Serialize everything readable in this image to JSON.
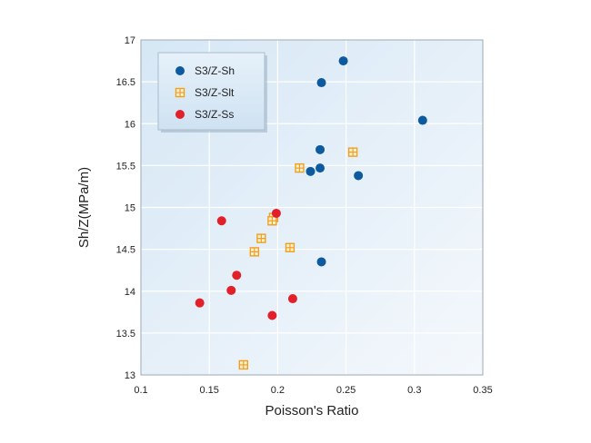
{
  "chart_data": {
    "type": "scatter",
    "xlabel": "Poisson's Ratio",
    "ylabel": "Sh/Z(MPa/m)",
    "xlim": [
      0.1,
      0.35
    ],
    "ylim": [
      13,
      17
    ],
    "xticks": [
      "0.1",
      "0.15",
      "0.2",
      "0.25",
      "0.3",
      "0.35"
    ],
    "yticks": [
      "13",
      "13.5",
      "14",
      "14.5",
      "15",
      "15.5",
      "16",
      "16.5",
      "17"
    ],
    "grid": true,
    "legend_position": "top-left",
    "series": [
      {
        "name": "S3/Z-Sh",
        "marker": "filled-circle",
        "color": "#0d5a9e",
        "points": [
          [
            0.248,
            16.75
          ],
          [
            0.232,
            16.49
          ],
          [
            0.306,
            16.04
          ],
          [
            0.231,
            15.69
          ],
          [
            0.231,
            15.47
          ],
          [
            0.224,
            15.43
          ],
          [
            0.259,
            15.38
          ],
          [
            0.232,
            14.35
          ]
        ]
      },
      {
        "name": "S3/Z-Slt",
        "marker": "boxed-plus",
        "color": "#f0a020",
        "points": [
          [
            0.255,
            15.66
          ],
          [
            0.216,
            15.47
          ],
          [
            0.197,
            14.88
          ],
          [
            0.196,
            14.84
          ],
          [
            0.188,
            14.63
          ],
          [
            0.209,
            14.52
          ],
          [
            0.183,
            14.47
          ],
          [
            0.175,
            13.12
          ]
        ]
      },
      {
        "name": "S3/Z-Ss",
        "marker": "filled-circle",
        "color": "#e2202a",
        "points": [
          [
            0.159,
            14.84
          ],
          [
            0.199,
            14.93
          ],
          [
            0.17,
            14.19
          ],
          [
            0.166,
            14.01
          ],
          [
            0.211,
            13.91
          ],
          [
            0.143,
            13.86
          ],
          [
            0.196,
            13.71
          ]
        ]
      }
    ]
  }
}
